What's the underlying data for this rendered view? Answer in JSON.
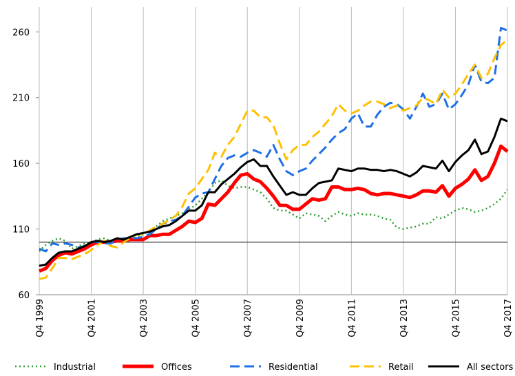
{
  "chart_data": {
    "type": "line",
    "categories": [
      "Q4 1999",
      null,
      null,
      null,
      null,
      null,
      null,
      null,
      "Q4 2001",
      null,
      null,
      null,
      null,
      null,
      null,
      null,
      "Q4 2003",
      null,
      null,
      null,
      null,
      null,
      null,
      null,
      "Q4 2005",
      null,
      null,
      null,
      null,
      null,
      null,
      null,
      "Q4 2007",
      null,
      null,
      null,
      null,
      null,
      null,
      null,
      "Q4 2009",
      null,
      null,
      null,
      null,
      null,
      null,
      null,
      "Q4 2011",
      null,
      null,
      null,
      null,
      null,
      null,
      null,
      "Q4 2013",
      null,
      null,
      null,
      null,
      null,
      null,
      null,
      "Q4 2015",
      null,
      null,
      null,
      null,
      null,
      null,
      null,
      "Q4 2017"
    ],
    "ylim": [
      60,
      279
    ],
    "yticks": [
      60,
      110,
      160,
      210,
      260
    ],
    "reference_line": 100,
    "vertical_grid": true,
    "series": [
      {
        "name": "Industrial",
        "color": "#2e9a2e",
        "style": "dotted",
        "values": [
          93,
          98,
          101,
          103,
          101,
          95,
          97,
          99,
          100,
          102,
          103,
          101,
          103,
          101,
          102,
          104,
          106,
          109,
          112,
          116,
          118,
          120,
          122,
          125,
          128,
          133,
          138,
          145,
          147,
          143,
          141,
          142,
          142,
          140,
          138,
          133,
          126,
          124,
          124,
          121,
          118,
          122,
          121,
          120,
          116,
          120,
          123,
          121,
          120,
          122,
          121,
          121,
          120,
          118,
          117,
          111,
          110,
          111,
          112,
          114,
          114,
          119,
          118,
          121,
          124,
          126,
          125,
          123,
          124,
          126,
          129,
          133,
          140
        ]
      },
      {
        "name": "Offices",
        "color": "#ff0000",
        "style": "thick",
        "values": [
          78,
          80,
          86,
          90,
          92,
          91,
          93,
          95,
          98,
          100,
          100,
          100,
          101,
          101,
          102,
          102,
          102,
          105,
          105,
          106,
          106,
          109,
          112,
          116,
          115,
          118,
          129,
          128,
          133,
          138,
          145,
          151,
          152,
          148,
          146,
          141,
          135,
          128,
          128,
          125,
          125,
          129,
          133,
          132,
          133,
          142,
          142,
          140,
          140,
          141,
          140,
          137,
          136,
          137,
          137,
          136,
          135,
          134,
          136,
          139,
          139,
          138,
          143,
          135,
          141,
          144,
          148,
          155,
          147,
          150,
          160,
          173,
          169
        ]
      },
      {
        "name": "Residential",
        "color": "#1f6fe6",
        "style": "dashed",
        "values": [
          95,
          93,
          99,
          98,
          99,
          98,
          96,
          97,
          100,
          100,
          99,
          99,
          102,
          103,
          103,
          103,
          104,
          106,
          110,
          114,
          116,
          117,
          120,
          127,
          134,
          137,
          138,
          148,
          158,
          164,
          166,
          165,
          168,
          170,
          168,
          165,
          174,
          163,
          154,
          151,
          154,
          156,
          162,
          167,
          172,
          178,
          183,
          186,
          194,
          198,
          188,
          188,
          197,
          203,
          206,
          205,
          201,
          194,
          203,
          213,
          203,
          205,
          213,
          201,
          205,
          212,
          220,
          235,
          222,
          221,
          225,
          263,
          261
        ]
      },
      {
        "name": "Retail",
        "color": "#ffc000",
        "style": "dashed",
        "values": [
          72,
          73,
          80,
          88,
          88,
          87,
          89,
          91,
          94,
          98,
          101,
          97,
          96,
          100,
          103,
          106,
          106,
          109,
          112,
          114,
          117,
          120,
          127,
          137,
          141,
          148,
          155,
          168,
          165,
          174,
          180,
          190,
          200,
          200,
          195,
          195,
          189,
          175,
          163,
          170,
          174,
          174,
          180,
          184,
          190,
          196,
          205,
          200,
          198,
          200,
          204,
          207,
          207,
          205,
          202,
          204,
          200,
          202,
          204,
          210,
          208,
          205,
          216,
          210,
          213,
          220,
          228,
          235,
          225,
          228,
          240,
          250,
          254
        ]
      },
      {
        "name": "All sectors",
        "color": "#000000",
        "style": "solid",
        "values": [
          82,
          83,
          88,
          92,
          93,
          93,
          95,
          97,
          100,
          101,
          100,
          101,
          103,
          102,
          104,
          106,
          107,
          108,
          110,
          112,
          113,
          116,
          120,
          124,
          124,
          128,
          138,
          138,
          144,
          148,
          152,
          157,
          161,
          163,
          158,
          158,
          150,
          143,
          136,
          138,
          136,
          136,
          141,
          145,
          146,
          147,
          156,
          155,
          154,
          156,
          156,
          155,
          155,
          154,
          155,
          154,
          152,
          150,
          153,
          158,
          157,
          156,
          162,
          154,
          161,
          166,
          170,
          178,
          167,
          169,
          180,
          194,
          192
        ]
      }
    ]
  }
}
